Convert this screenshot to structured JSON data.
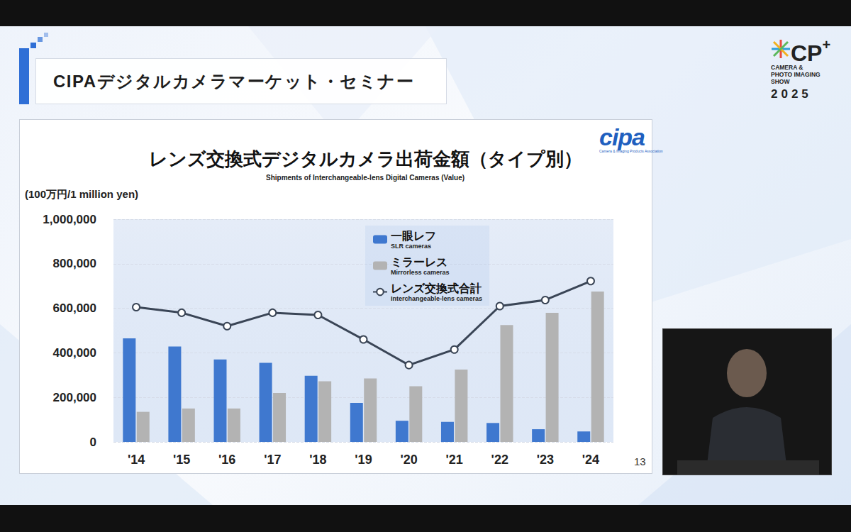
{
  "slide": {
    "header": "CIPAデジタルカメラマーケット・セミナー",
    "logo": {
      "name": "CP+",
      "lines": [
        "CAMERA &",
        "PHOTO IMAGING",
        "SHOW"
      ],
      "year": "2025"
    },
    "page_number": "13"
  },
  "chart_data": {
    "type": "bar",
    "title": "レンズ交換式デジタルカメラ出荷金額（タイプ別）",
    "subtitle": "Shipments of Interchangeable-lens Digital Cameras (Value)",
    "y_label": "(100万円/1 million yen)",
    "logo": "cipa",
    "logo_caption": "Camera & Imaging Products Association",
    "categories": [
      "'14",
      "'15",
      "'16",
      "'17",
      "'18",
      "'19",
      "'20",
      "'21",
      "'22",
      "'23",
      "'24"
    ],
    "series": [
      {
        "name": "一眼レフ",
        "name_en": "SLR cameras",
        "type": "bar",
        "color": "#3f78cf",
        "values": [
          465000,
          428000,
          370000,
          355000,
          297000,
          175000,
          95000,
          90000,
          85000,
          57000,
          47000
        ]
      },
      {
        "name": "ミラーレス",
        "name_en": "Mirrorless cameras",
        "type": "bar",
        "color": "#b3b3b3",
        "values": [
          135000,
          150000,
          150000,
          220000,
          272000,
          285000,
          250000,
          325000,
          525000,
          580000,
          675000
        ]
      },
      {
        "name": "レンズ交換式合計",
        "name_en": "Interchangeable-lens cameras",
        "type": "line",
        "color": "#3a4556",
        "marker": "circle",
        "values": [
          605000,
          580000,
          520000,
          580000,
          570000,
          460000,
          345000,
          415000,
          610000,
          637000,
          722000
        ]
      }
    ],
    "ylim": [
      0,
      1000000
    ],
    "yticks": [
      0,
      {
        "value": 200000,
        "label": "200,000"
      },
      {
        "value": 400000,
        "label": "400,000"
      },
      {
        "value": 600000,
        "label": "600,000"
      },
      {
        "value": 800000,
        "label": "800,000"
      },
      {
        "value": 1000000,
        "label": "1,000,000"
      }
    ],
    "grid": true,
    "legend": "top"
  }
}
